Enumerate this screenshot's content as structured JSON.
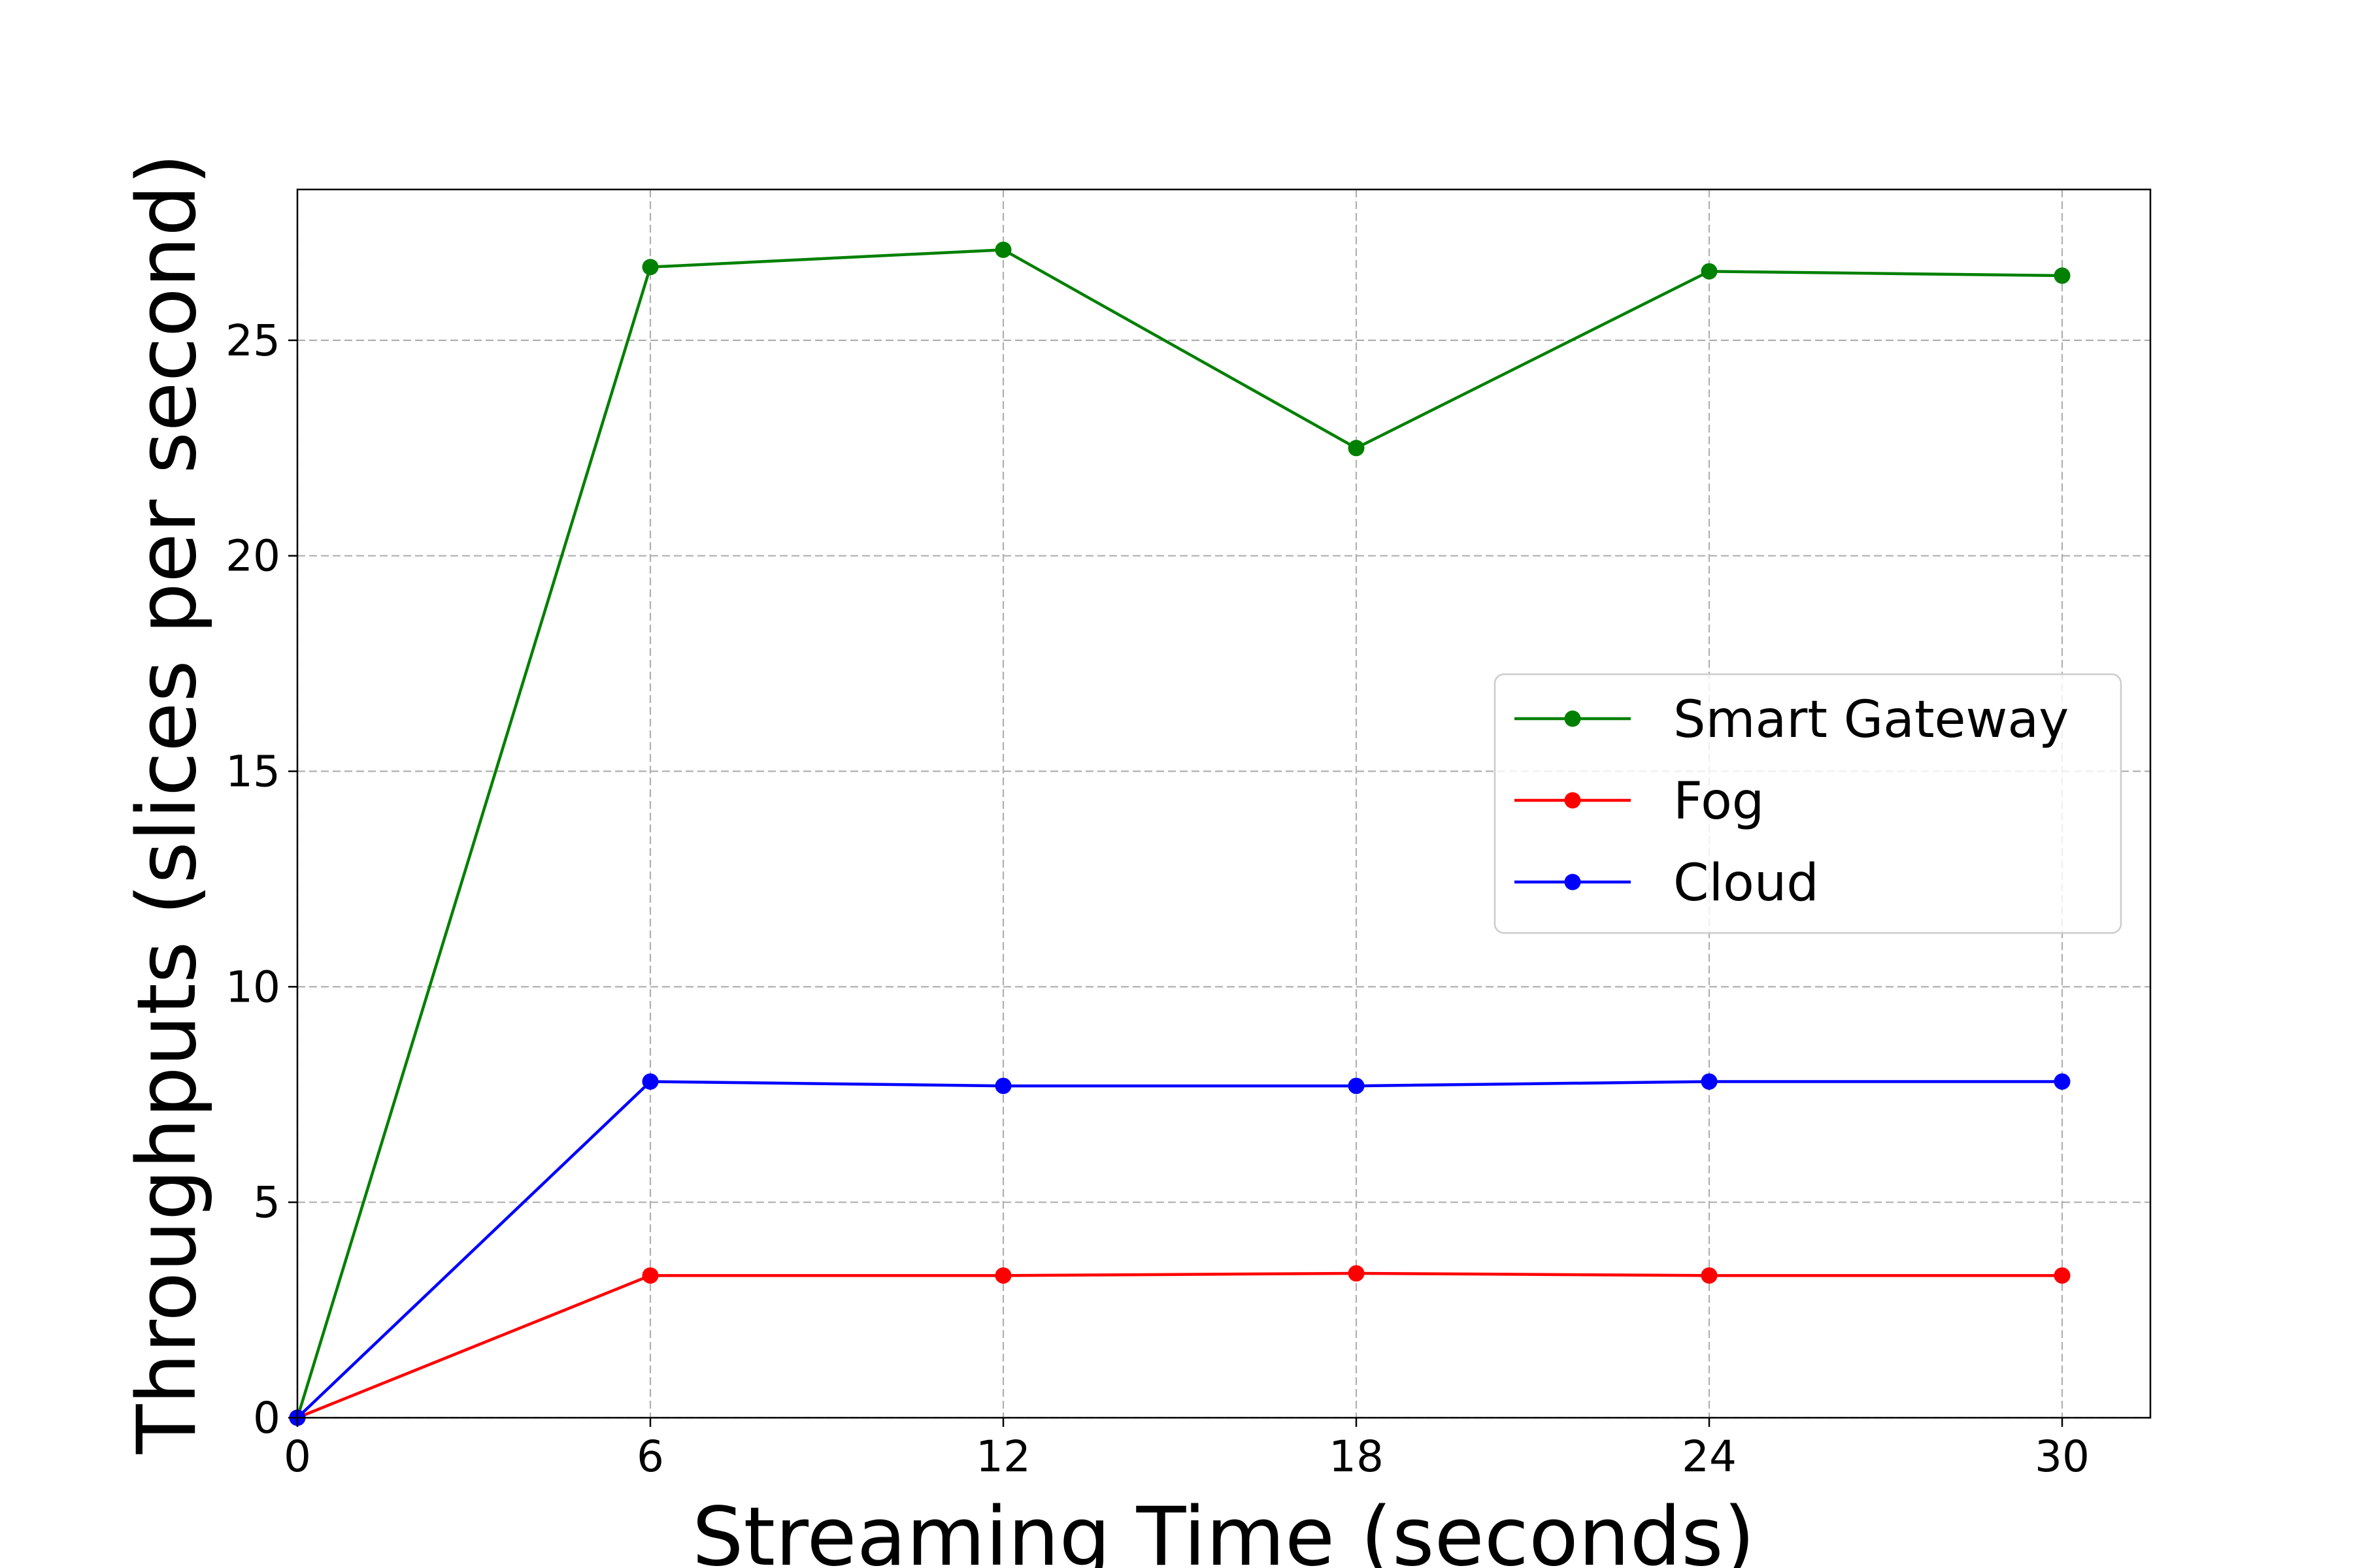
{
  "chart_data": {
    "type": "line",
    "xlabel": "Streaming Time (seconds)",
    "ylabel": "Throughputs (slices per second)",
    "x": [
      0,
      6,
      12,
      18,
      24,
      30
    ],
    "xticks": [
      "0",
      "6",
      "12",
      "18",
      "24",
      "30"
    ],
    "yticks": [
      "0",
      "5",
      "10",
      "15",
      "20",
      "25"
    ],
    "xlim": [
      0,
      31.5
    ],
    "ylim": [
      0,
      28.5
    ],
    "grid": true,
    "legend_position": "center-right",
    "series": [
      {
        "name": "Smart Gateway",
        "color": "#008000",
        "values": [
          0,
          26.7,
          27.1,
          22.5,
          26.6,
          26.5
        ]
      },
      {
        "name": "Fog",
        "color": "#ff0000",
        "values": [
          0,
          3.3,
          3.3,
          3.35,
          3.3,
          3.3
        ]
      },
      {
        "name": "Cloud",
        "color": "#0000ff",
        "values": [
          0,
          7.8,
          7.7,
          7.7,
          7.8,
          7.8
        ]
      }
    ]
  }
}
